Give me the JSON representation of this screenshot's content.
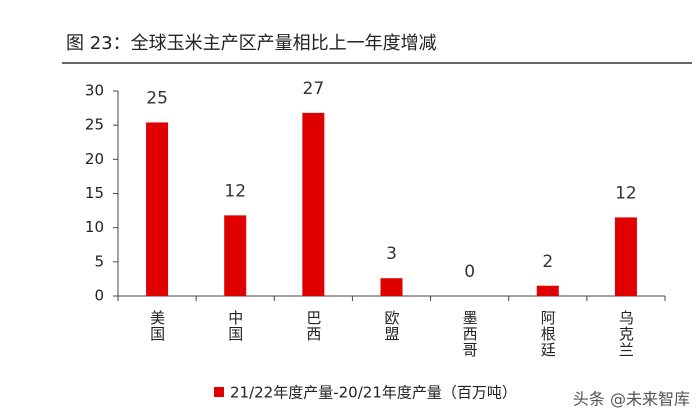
{
  "chart_data": {
    "type": "bar",
    "title": "图 23：全球玉米主产区产量相比上一年度增减",
    "categories": [
      "美国",
      "中国",
      "巴西",
      "欧盟",
      "墨西哥",
      "阿根廷",
      "乌克兰"
    ],
    "series": [
      {
        "name": "21/22年度产量-20/21年度产量（百万吨）",
        "color": "#e00000",
        "values": [
          25.4,
          11.8,
          26.8,
          2.6,
          0,
          1.5,
          11.5
        ],
        "value_labels": [
          "25",
          "12",
          "27",
          "3",
          "0",
          "2",
          "12"
        ]
      }
    ],
    "ylim": [
      0,
      30
    ],
    "yticks": [
      0,
      5,
      10,
      15,
      20,
      25,
      30
    ],
    "legend": "bottom",
    "watermark": "头条 @未来智库"
  }
}
